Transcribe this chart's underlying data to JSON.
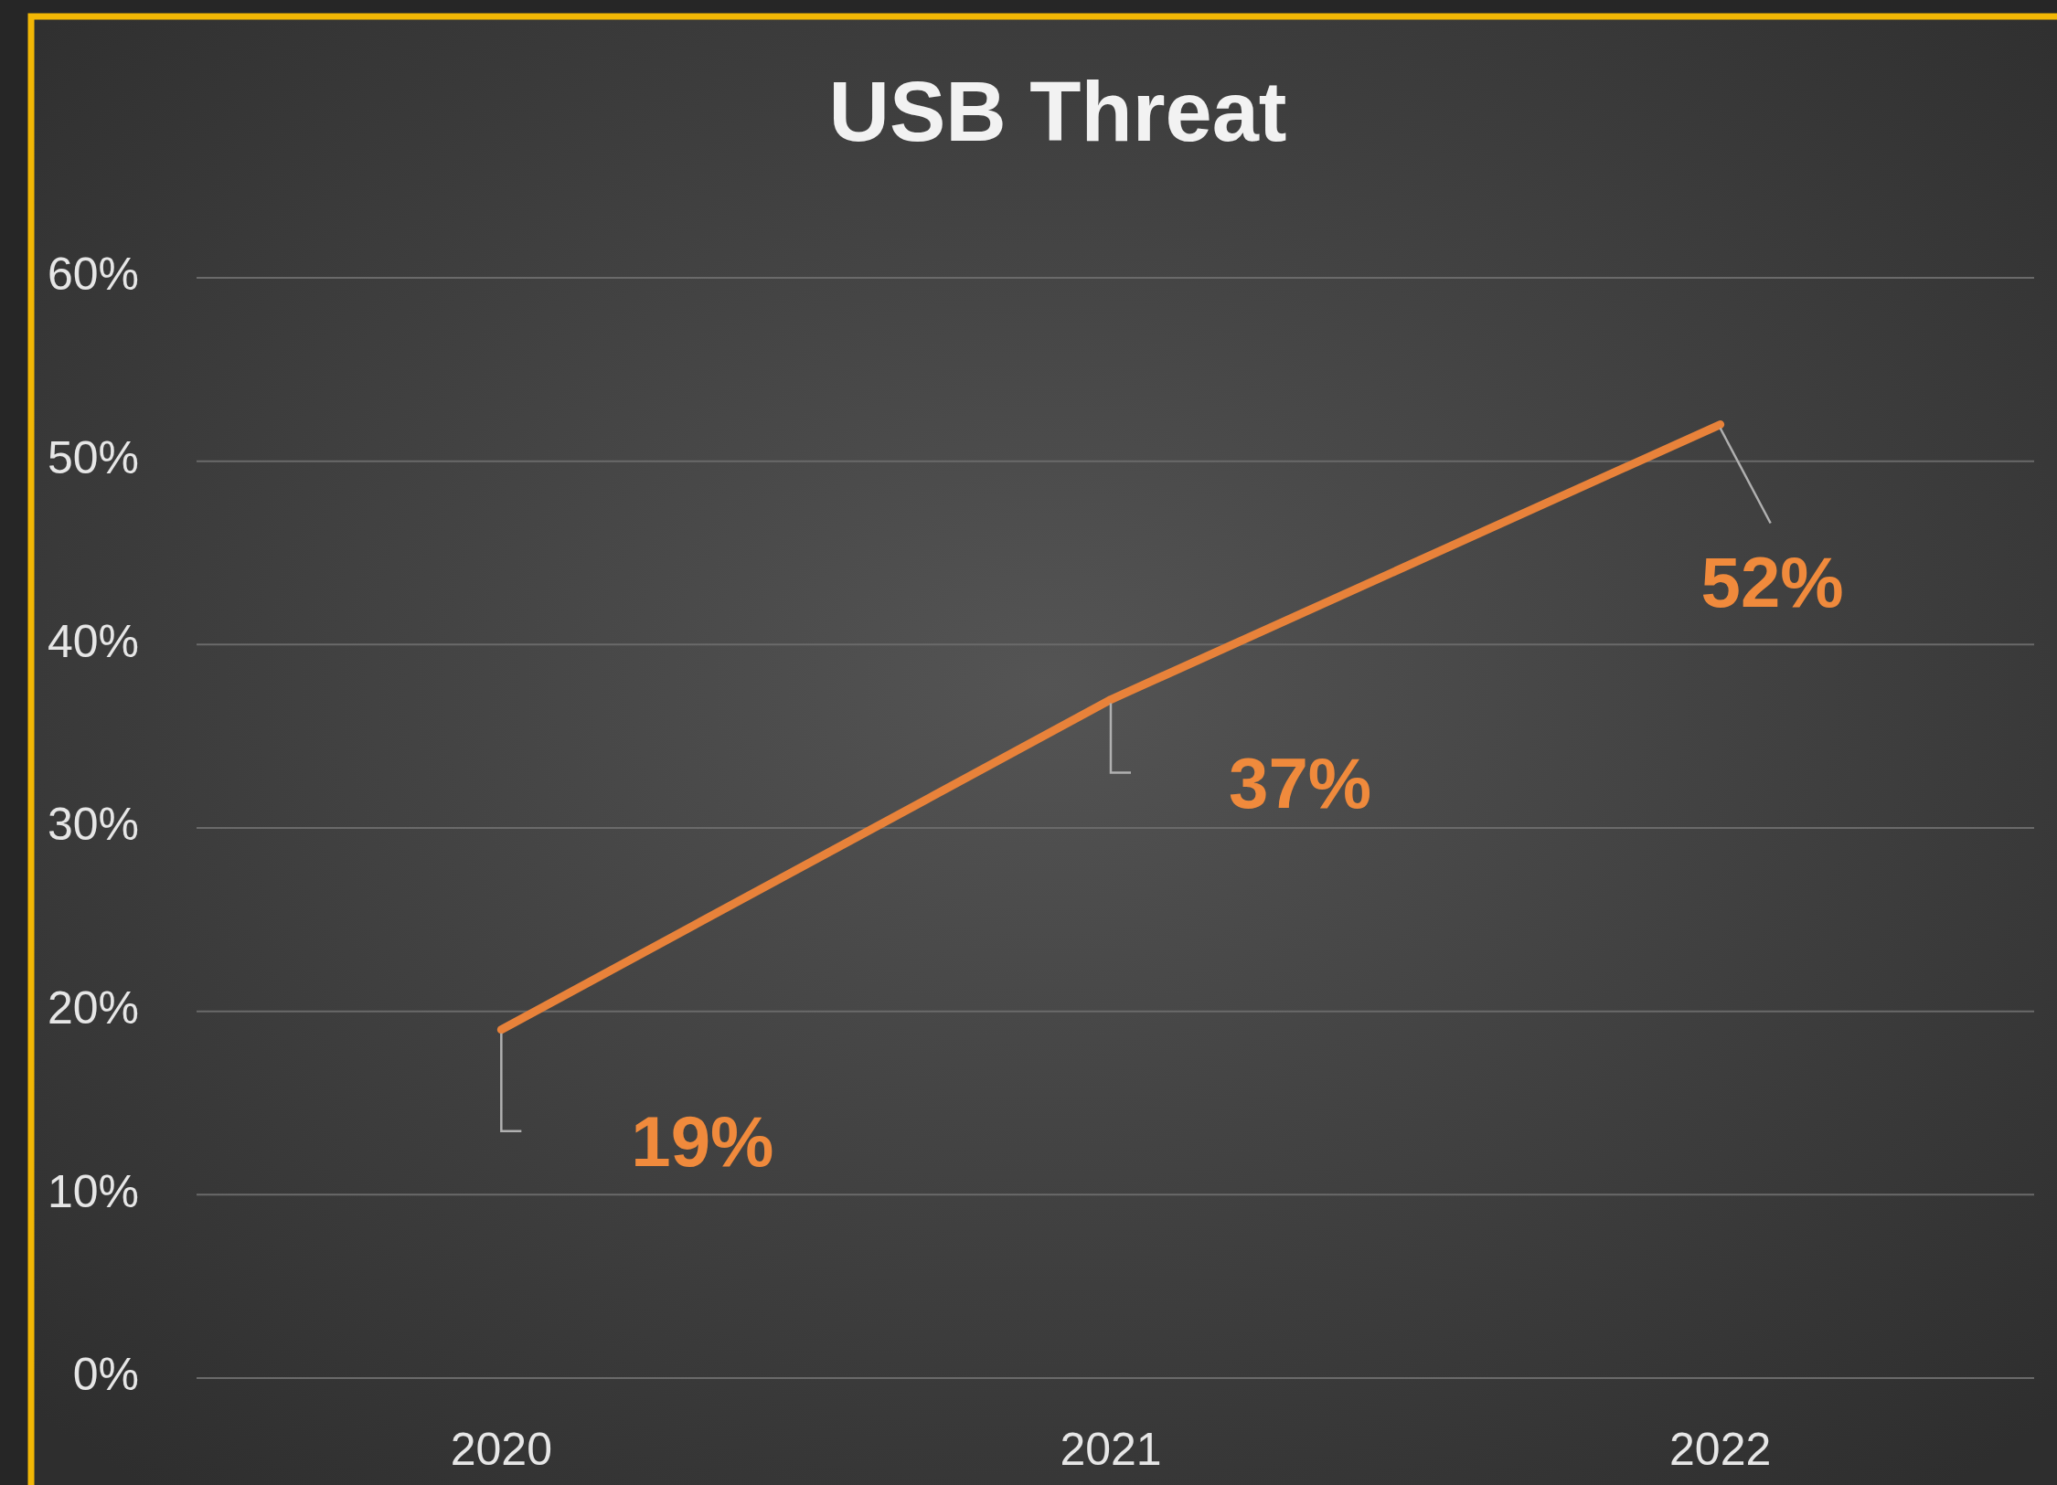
{
  "chart_data": {
    "type": "line",
    "title": "USB Threat",
    "categories": [
      "2020",
      "2021",
      "2022"
    ],
    "series": [
      {
        "color": "#e8823a",
        "values": [
          19,
          37,
          52
        ],
        "value_labels": [
          "19%",
          "37%",
          "52%"
        ]
      }
    ],
    "ylim": [
      0,
      60
    ],
    "yticks": [
      {
        "value": 0,
        "label": "0%"
      },
      {
        "value": 10,
        "label": "10%"
      },
      {
        "value": 20,
        "label": "20%"
      },
      {
        "value": 30,
        "label": "30%"
      },
      {
        "value": 40,
        "label": "40%"
      },
      {
        "value": 50,
        "label": "50%"
      },
      {
        "value": 60,
        "label": "60%"
      }
    ],
    "grid": "y",
    "marker": "none",
    "line_style": "solid"
  }
}
